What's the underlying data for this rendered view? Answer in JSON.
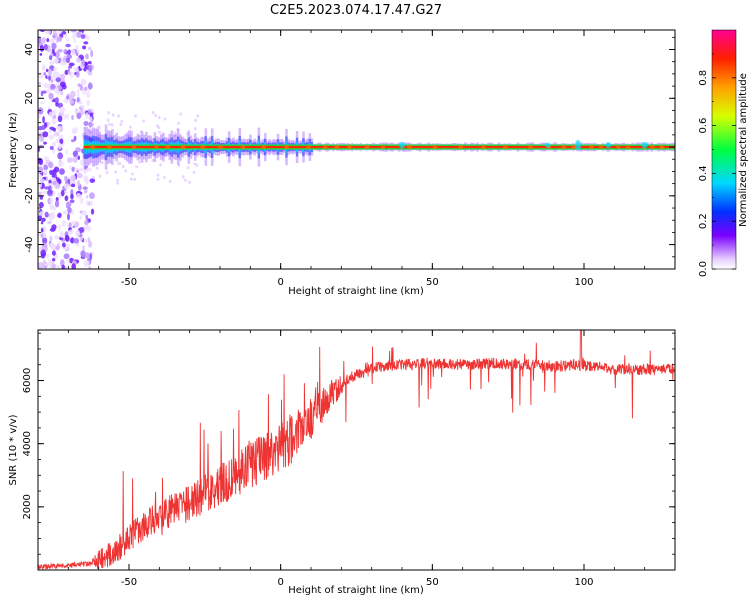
{
  "title": "C2E5.2023.074.17.47.G27",
  "chart_data": [
    {
      "type": "heatmap",
      "xlabel": "Height of straight line (km)",
      "ylabel": "Frequency (Hz)",
      "xlim": [
        -80,
        130
      ],
      "ylim": [
        -50,
        48
      ],
      "xticks": [
        -50,
        0,
        50,
        100
      ],
      "yticks": [
        -40,
        -20,
        0,
        20,
        40
      ],
      "colorbar": {
        "label": "Normalized spectral amplitude",
        "ticks": [
          "0.0",
          "0.2",
          "0.4",
          "0.6",
          "0.8"
        ],
        "range": [
          0,
          1
        ]
      },
      "features": {
        "center_line_freq_hz": 0,
        "noise_region_x": [
          -80,
          -62
        ],
        "line_start_x": -65
      }
    },
    {
      "type": "line",
      "xlabel": "Height of straight line (km)",
      "ylabel": "SNR (10 * v/v)",
      "xlim": [
        -80,
        130
      ],
      "ylim": [
        0,
        7600
      ],
      "xticks": [
        -50,
        0,
        50,
        100
      ],
      "yticks": [
        2000,
        4000,
        6000
      ],
      "series": [
        {
          "color": "#ee3333",
          "trend_x": [
            -80,
            -70,
            -62,
            -55,
            -50,
            -45,
            -40,
            -35,
            -30,
            -25,
            -20,
            -15,
            -10,
            -5,
            0,
            5,
            10,
            15,
            20,
            25,
            30,
            40,
            50,
            60,
            70,
            80,
            90,
            100,
            110,
            120,
            130
          ],
          "trend_y": [
            100,
            150,
            200,
            550,
            1000,
            1400,
            1700,
            1900,
            2100,
            2400,
            2700,
            3000,
            3300,
            3600,
            3900,
            4300,
            4800,
            5400,
            5900,
            6200,
            6400,
            6500,
            6550,
            6500,
            6550,
            6500,
            6450,
            6500,
            6350,
            6350,
            6350
          ]
        }
      ]
    }
  ]
}
